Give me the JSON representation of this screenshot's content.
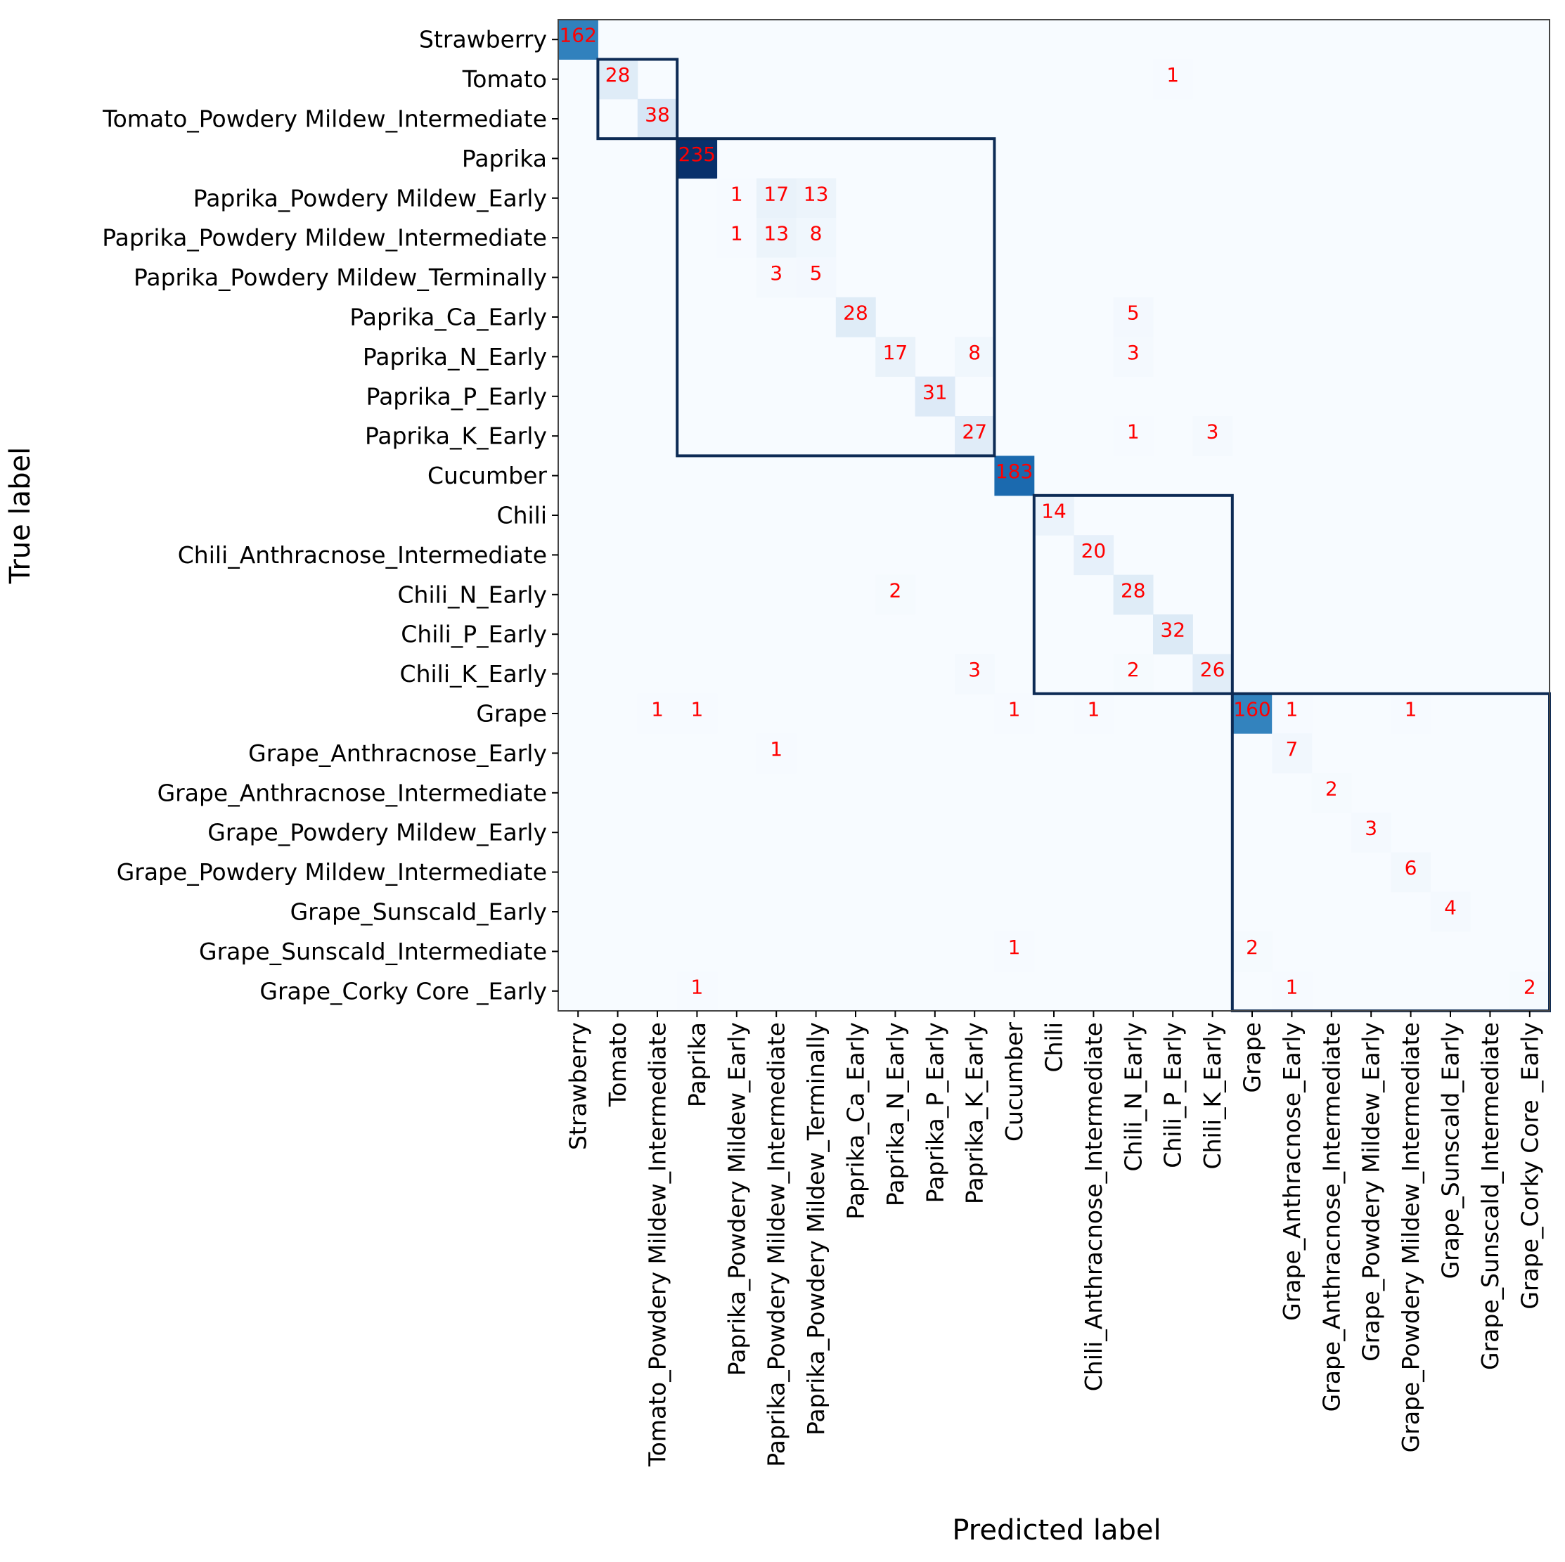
{
  "chart_data": {
    "type": "heatmap",
    "title": "",
    "xlabel": "Predicted label",
    "ylabel": "True label",
    "labels": [
      "Strawberry",
      "Tomato",
      "Tomato_Powdery Mildew_Intermediate",
      "Paprika",
      "Paprika_Powdery Mildew_Early",
      "Paprika_Powdery Mildew_Intermediate",
      "Paprika_Powdery Mildew_Terminally",
      "Paprika_Ca_Early",
      "Paprika_N_Early",
      "Paprika_P_Early",
      "Paprika_K_Early",
      "Cucumber",
      "Chili",
      "Chili_Anthracnose_Intermediate",
      "Chili_N_Early",
      "Chili_P_Early",
      "Chili_K_Early",
      "Grape",
      "Grape_Anthracnose_Early",
      "Grape_Anthracnose_Intermediate",
      "Grape_Powdery Mildew_Early",
      "Grape_Powdery Mildew_Intermediate",
      "Grape_Sunscald_Early",
      "Grape_Sunscald_Intermediate",
      "Grape_Corky Core _Early"
    ],
    "cells": [
      {
        "row": 0,
        "col": 0,
        "value": 162
      },
      {
        "row": 1,
        "col": 1,
        "value": 28
      },
      {
        "row": 1,
        "col": 15,
        "value": 1
      },
      {
        "row": 2,
        "col": 2,
        "value": 38
      },
      {
        "row": 3,
        "col": 3,
        "value": 235
      },
      {
        "row": 4,
        "col": 4,
        "value": 1
      },
      {
        "row": 4,
        "col": 5,
        "value": 17
      },
      {
        "row": 4,
        "col": 6,
        "value": 13
      },
      {
        "row": 5,
        "col": 4,
        "value": 1
      },
      {
        "row": 5,
        "col": 5,
        "value": 13
      },
      {
        "row": 5,
        "col": 6,
        "value": 8
      },
      {
        "row": 6,
        "col": 5,
        "value": 3
      },
      {
        "row": 6,
        "col": 6,
        "value": 5
      },
      {
        "row": 7,
        "col": 7,
        "value": 28
      },
      {
        "row": 7,
        "col": 14,
        "value": 5
      },
      {
        "row": 8,
        "col": 8,
        "value": 17
      },
      {
        "row": 8,
        "col": 10,
        "value": 8
      },
      {
        "row": 8,
        "col": 14,
        "value": 3
      },
      {
        "row": 9,
        "col": 9,
        "value": 31
      },
      {
        "row": 10,
        "col": 10,
        "value": 27
      },
      {
        "row": 10,
        "col": 14,
        "value": 1
      },
      {
        "row": 10,
        "col": 16,
        "value": 3
      },
      {
        "row": 11,
        "col": 11,
        "value": 183
      },
      {
        "row": 12,
        "col": 12,
        "value": 14
      },
      {
        "row": 13,
        "col": 13,
        "value": 20
      },
      {
        "row": 14,
        "col": 8,
        "value": 2
      },
      {
        "row": 14,
        "col": 14,
        "value": 28
      },
      {
        "row": 15,
        "col": 15,
        "value": 32
      },
      {
        "row": 16,
        "col": 10,
        "value": 3
      },
      {
        "row": 16,
        "col": 14,
        "value": 2
      },
      {
        "row": 16,
        "col": 16,
        "value": 26
      },
      {
        "row": 17,
        "col": 2,
        "value": 1
      },
      {
        "row": 17,
        "col": 3,
        "value": 1
      },
      {
        "row": 17,
        "col": 11,
        "value": 1
      },
      {
        "row": 17,
        "col": 13,
        "value": 1
      },
      {
        "row": 17,
        "col": 17,
        "value": 160
      },
      {
        "row": 17,
        "col": 18,
        "value": 1
      },
      {
        "row": 17,
        "col": 21,
        "value": 1
      },
      {
        "row": 18,
        "col": 5,
        "value": 1
      },
      {
        "row": 18,
        "col": 18,
        "value": 7
      },
      {
        "row": 19,
        "col": 19,
        "value": 2
      },
      {
        "row": 20,
        "col": 20,
        "value": 3
      },
      {
        "row": 21,
        "col": 21,
        "value": 6
      },
      {
        "row": 22,
        "col": 22,
        "value": 4
      },
      {
        "row": 23,
        "col": 11,
        "value": 1
      },
      {
        "row": 23,
        "col": 17,
        "value": 2
      },
      {
        "row": 24,
        "col": 3,
        "value": 1
      },
      {
        "row": 24,
        "col": 18,
        "value": 1
      },
      {
        "row": 24,
        "col": 24,
        "value": 2
      }
    ],
    "vmax": 235,
    "colormap": [
      "#f7fbff",
      "#deebf7",
      "#c6dbef",
      "#9ecae1",
      "#6baed6",
      "#4292c6",
      "#2171b5",
      "#08519c",
      "#08306b"
    ],
    "cell_text_color": "#ff0000",
    "group_boxes": [
      {
        "start": 1,
        "end": 2
      },
      {
        "start": 3,
        "end": 10
      },
      {
        "start": 12,
        "end": 16
      },
      {
        "start": 17,
        "end": 24
      }
    ],
    "group_box_color": "#0d2b55",
    "grid": false,
    "colorbar": false
  }
}
